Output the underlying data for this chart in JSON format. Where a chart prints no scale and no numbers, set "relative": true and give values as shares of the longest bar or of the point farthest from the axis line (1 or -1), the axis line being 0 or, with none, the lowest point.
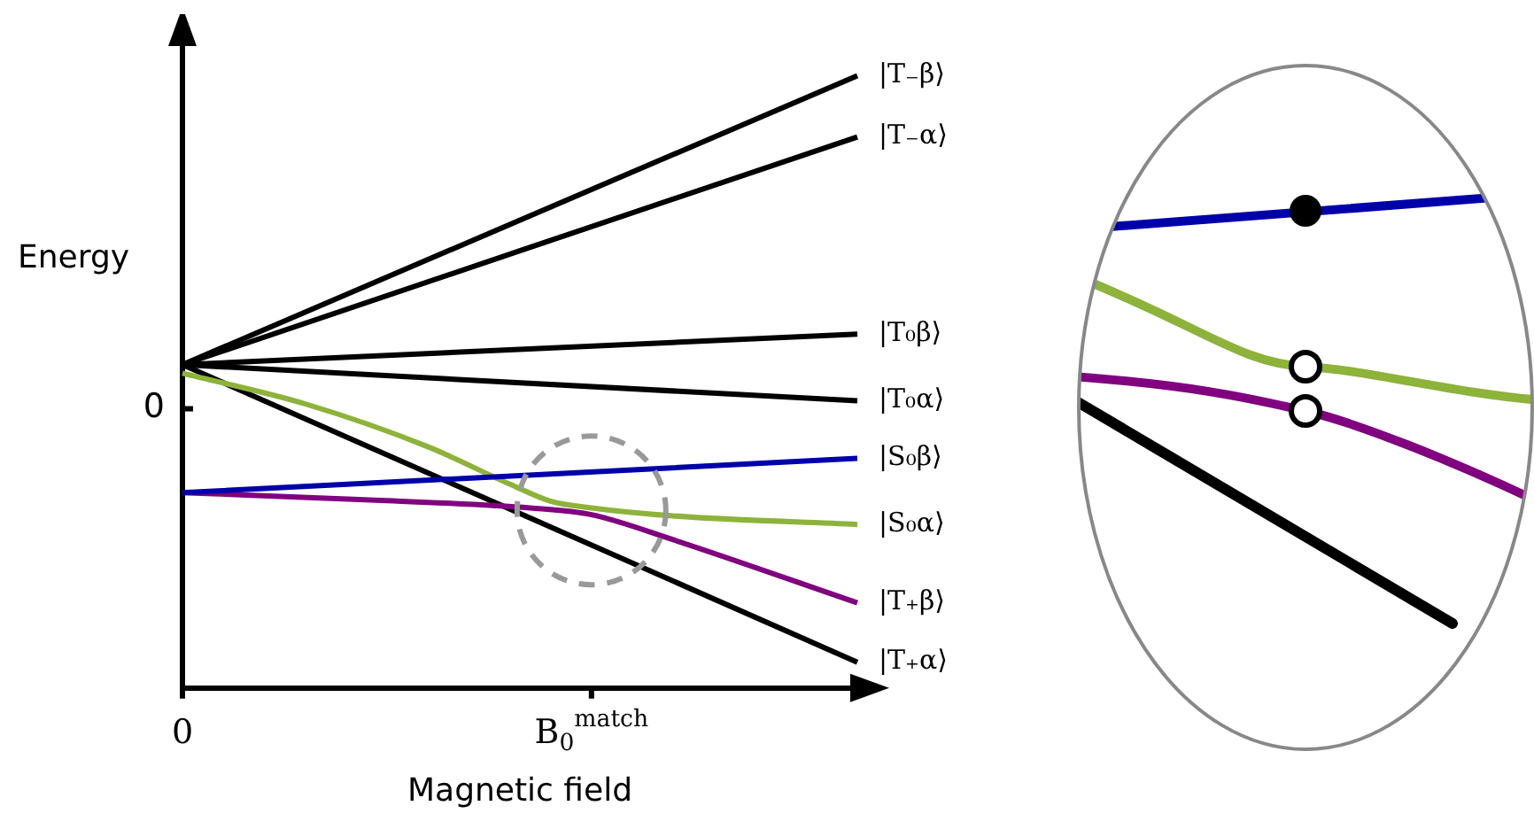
{
  "chart_data": {
    "type": "line",
    "relative": true,
    "xlabel": "Magnetic field",
    "ylabel": "Energy",
    "categories": [
      "0",
      null,
      null,
      null,
      null,
      null,
      null,
      null,
      null,
      null,
      null,
      null,
      null,
      null,
      null,
      null,
      null,
      null,
      null,
      null,
      "B$_{0}$$^{match}$",
      null,
      null,
      null,
      null,
      null,
      null,
      null,
      null,
      null,
      null,
      null,
      null,
      null
    ],
    "grid": false,
    "legend": false,
    "annotations": [
      "0"
    ],
    "series": [
      {
        "name": "|T₋β⟩",
        "color": "#000000",
        "values": [
          0.528,
          null,
          null,
          null,
          null,
          null,
          null,
          null,
          null,
          null,
          null,
          null,
          null,
          null,
          null,
          null,
          null,
          null,
          null,
          null,
          null,
          null,
          null,
          null,
          null,
          null,
          null,
          null,
          null,
          null,
          null,
          null,
          null,
          1.0
        ]
      },
      {
        "name": "|T₋α⟩",
        "color": "#000000",
        "values": [
          0.528,
          null,
          null,
          null,
          null,
          null,
          null,
          null,
          null,
          null,
          null,
          null,
          null,
          null,
          null,
          null,
          null,
          null,
          null,
          null,
          null,
          null,
          null,
          null,
          null,
          null,
          null,
          null,
          null,
          null,
          null,
          null,
          null,
          0.9
        ]
      },
      {
        "name": "|T₀β⟩",
        "color": "#000000",
        "values": [
          0.528,
          null,
          null,
          null,
          null,
          null,
          null,
          null,
          null,
          null,
          null,
          null,
          null,
          null,
          null,
          null,
          null,
          null,
          null,
          null,
          null,
          null,
          null,
          null,
          null,
          null,
          null,
          null,
          null,
          null,
          null,
          null,
          null,
          0.578
        ]
      },
      {
        "name": "|T₀α⟩",
        "color": "#000000",
        "values": [
          0.528,
          null,
          null,
          null,
          null,
          null,
          null,
          null,
          null,
          null,
          null,
          null,
          null,
          null,
          null,
          null,
          null,
          null,
          null,
          null,
          null,
          null,
          null,
          null,
          null,
          null,
          null,
          null,
          null,
          null,
          null,
          null,
          null,
          0.469
        ]
      },
      {
        "name": "|S₀β⟩",
        "color": "#0000aa",
        "values": [
          0.319,
          null,
          null,
          null,
          null,
          null,
          null,
          null,
          null,
          null,
          null,
          null,
          null,
          null,
          null,
          null,
          null,
          null,
          null,
          null,
          null,
          null,
          null,
          null,
          null,
          null,
          null,
          null,
          null,
          null,
          null,
          null,
          null,
          0.375
        ]
      },
      {
        "name": "|S₀α⟩",
        "color": "#8db33a",
        "values": [
          0.514,
          null,
          null,
          null,
          null,
          null,
          0.464,
          null,
          null,
          null,
          null,
          null,
          0.394,
          null,
          null,
          null,
          0.333,
          null,
          0.305,
          null,
          0.294,
          null,
          null,
          null,
          0.281,
          null,
          null,
          null,
          null,
          null,
          null,
          null,
          null,
          0.267
        ]
      },
      {
        "name": "|T₊β⟩",
        "color": "#800080",
        "values": [
          0.319,
          null,
          null,
          null,
          null,
          null,
          null,
          null,
          null,
          null,
          0.306,
          null,
          null,
          null,
          null,
          null,
          null,
          0.294,
          null,
          null,
          0.283,
          null,
          null,
          null,
          0.242,
          null,
          null,
          null,
          null,
          null,
          null,
          null,
          null,
          0.139
        ]
      },
      {
        "name": "|T₊α⟩",
        "color": "#000000",
        "values": [
          0.528,
          null,
          null,
          null,
          null,
          null,
          null,
          null,
          null,
          null,
          null,
          null,
          null,
          null,
          null,
          null,
          null,
          null,
          null,
          null,
          null,
          null,
          null,
          null,
          null,
          null,
          null,
          null,
          null,
          null,
          null,
          null,
          null,
          0.042
        ]
      }
    ]
  }
}
